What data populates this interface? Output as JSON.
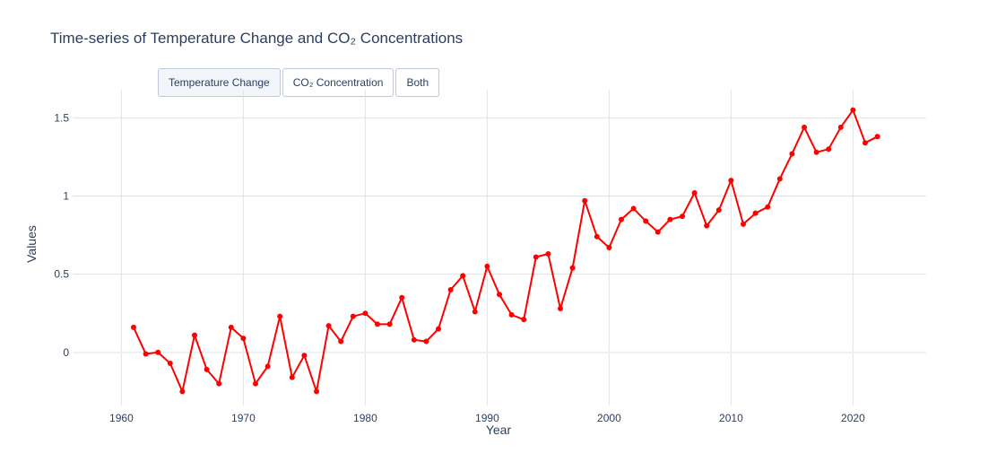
{
  "title": "Time-series of Temperature Change and CO₂ Concentrations",
  "buttons": [
    {
      "label": "Temperature Change",
      "active": true
    },
    {
      "label": "CO₂ Concentration",
      "active": false
    },
    {
      "label": "Both",
      "active": false
    }
  ],
  "chart_data": {
    "type": "line",
    "xlabel": "Year",
    "ylabel": "Values",
    "xlim": [
      1956,
      2026
    ],
    "ylim": [
      -0.34,
      1.68
    ],
    "xticks": [
      1960,
      1970,
      1980,
      1990,
      2000,
      2010,
      2020
    ],
    "yticks": [
      0,
      0.5,
      1,
      1.5
    ],
    "ytick_labels": [
      "0",
      "0.5",
      "1",
      "1.5"
    ],
    "grid": true,
    "series": [
      {
        "color": "#ff0000",
        "mode": "lines+markers",
        "x": [
          1961,
          1962,
          1963,
          1964,
          1965,
          1966,
          1967,
          1968,
          1969,
          1970,
          1971,
          1972,
          1973,
          1974,
          1975,
          1976,
          1977,
          1978,
          1979,
          1980,
          1981,
          1982,
          1983,
          1984,
          1985,
          1986,
          1987,
          1988,
          1989,
          1990,
          1991,
          1992,
          1993,
          1994,
          1995,
          1996,
          1997,
          1998,
          1999,
          2000,
          2001,
          2002,
          2003,
          2004,
          2005,
          2006,
          2007,
          2008,
          2009,
          2010,
          2011,
          2012,
          2013,
          2014,
          2015,
          2016,
          2017,
          2018,
          2019,
          2020,
          2021,
          2022
        ],
        "y": [
          0.16,
          -0.01,
          0.0,
          -0.07,
          -0.25,
          0.11,
          -0.11,
          -0.2,
          0.16,
          0.09,
          -0.2,
          -0.09,
          0.23,
          -0.16,
          -0.02,
          -0.25,
          0.17,
          0.07,
          0.23,
          0.25,
          0.18,
          0.18,
          0.35,
          0.08,
          0.07,
          0.15,
          0.4,
          0.49,
          0.26,
          0.55,
          0.37,
          0.24,
          0.21,
          0.61,
          0.63,
          0.28,
          0.54,
          0.97,
          0.74,
          0.67,
          0.85,
          0.92,
          0.84,
          0.77,
          0.85,
          0.87,
          1.02,
          0.81,
          0.91,
          1.1,
          0.82,
          0.89,
          0.93,
          1.11,
          1.27,
          1.44,
          1.28,
          1.3,
          1.44,
          1.55,
          1.34,
          1.38
        ]
      }
    ]
  }
}
